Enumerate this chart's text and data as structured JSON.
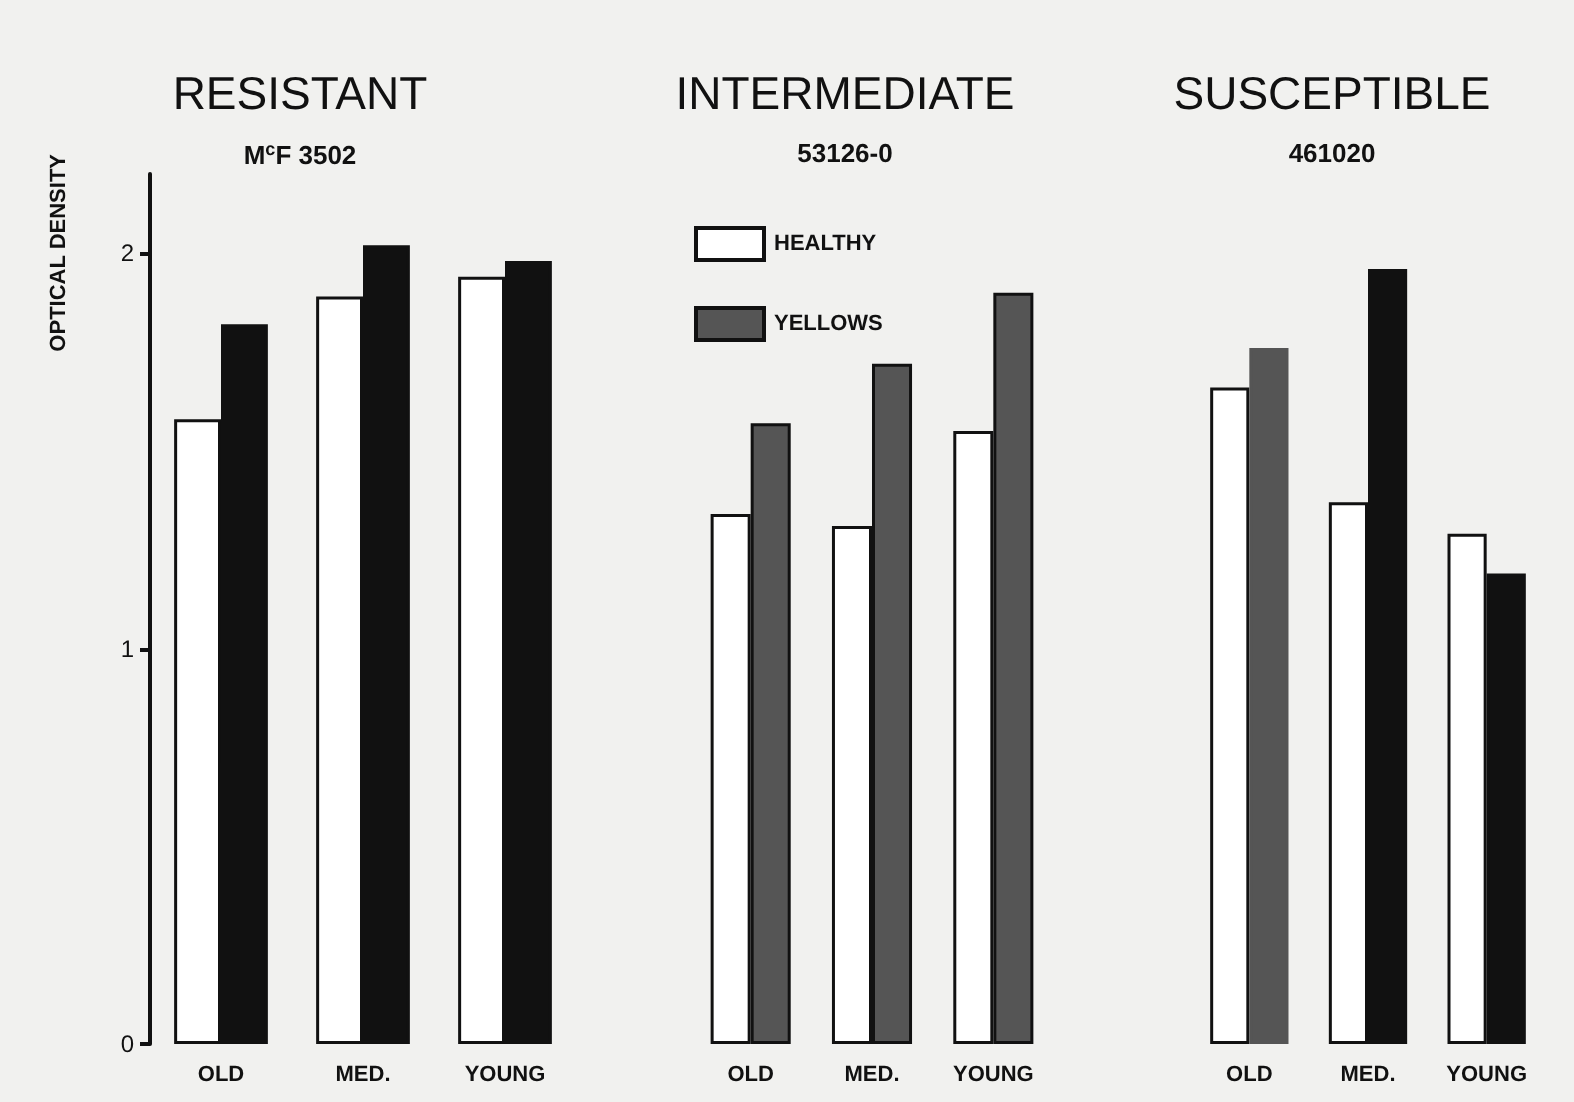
{
  "chart_data": [
    {
      "type": "bar",
      "title": "RESISTANT",
      "subtitle": "M$^{c}$F 3502",
      "ylabel": "OPTICAL DENSITY",
      "categories": [
        "OLD",
        "MED.",
        "YOUNG"
      ],
      "series": [
        {
          "color": "#ffffff",
          "values": [
            1.58,
            1.89,
            1.94
          ]
        },
        {
          "color": "#111111",
          "values": [
            1.82,
            2.02,
            1.98
          ]
        }
      ],
      "ylim": [
        0,
        2.2
      ],
      "yticks": [
        0,
        1,
        2
      ],
      "grid": false,
      "legend": false
    },
    {
      "type": "bar",
      "title": "INTERMEDIATE",
      "subtitle": "53126-0",
      "categories": [
        "OLD",
        "MED.",
        "YOUNG"
      ],
      "series": [
        {
          "name": "HEALTHY",
          "color": "#ffffff",
          "values": [
            1.34,
            1.31,
            1.55
          ]
        },
        {
          "name": "YELLOWS",
          "color": "#555555",
          "values": [
            1.57,
            1.72,
            1.9
          ]
        }
      ],
      "ylim": [
        0,
        2
      ],
      "yticks": [
        0,
        1,
        2
      ],
      "tick_labels": "x",
      "grid": false,
      "legend": "top left"
    },
    {
      "type": "bar",
      "title": "SUSCEPTIBLE",
      "subtitle": "461020",
      "categories": [
        "OLD",
        "MED.",
        "YOUNG"
      ],
      "series": [
        {
          "color": "#ffffff",
          "values": [
            1.66,
            1.37,
            1.29
          ]
        },
        {
          "color": "#111111",
          "colors": [
            "#555555",
            "#111111",
            "#111111"
          ],
          "values": [
            1.76,
            1.96,
            1.19
          ]
        }
      ],
      "ylim": [
        0,
        2
      ],
      "yticks": [
        0,
        1,
        2
      ],
      "tick_labels": "x",
      "grid": false,
      "legend": false
    }
  ]
}
